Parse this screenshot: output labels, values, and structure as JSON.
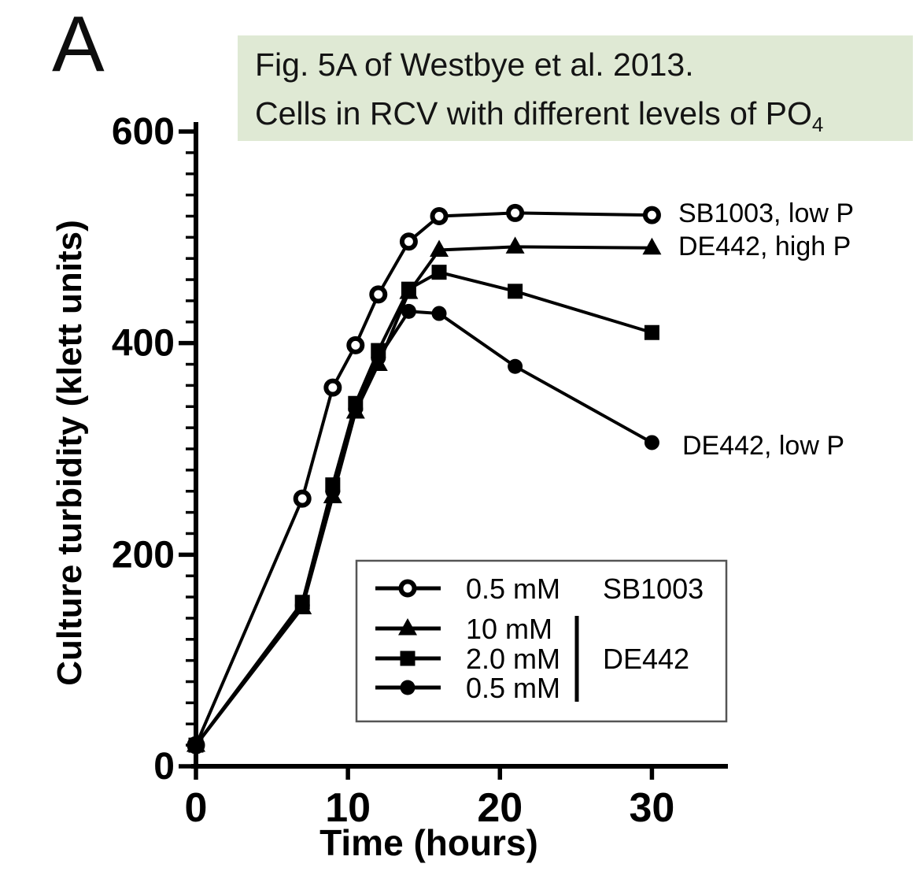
{
  "panel_label": "A",
  "title": {
    "line1": "Fig. 5A of Westbye et al. 2013.",
    "line2_main": "Cells in RCV with different levels of PO",
    "line2_subscript": "4",
    "background_color": "#dfe9d4"
  },
  "series_labels": {
    "sb1003_low_p": "SB1003, low P",
    "de442_high_p": "DE442, high P",
    "de442_low_p": "DE442, low P"
  },
  "chart_data": {
    "type": "line",
    "title": "",
    "xlabel": "Time (hours)",
    "ylabel": "Culture turbidity (klett units)",
    "xlim": [
      0,
      35
    ],
    "ylim": [
      0,
      600
    ],
    "xticks": [
      0,
      10,
      20,
      30
    ],
    "yticks": [
      0,
      200,
      400,
      600
    ],
    "ytick_minor_step": 20,
    "grid": false,
    "line_color": "#000000",
    "series": [
      {
        "name": "SB1003 0.5 mM (low P)",
        "marker": "open-circle",
        "x": [
          0,
          7,
          9,
          10.5,
          12,
          14,
          16,
          21,
          30
        ],
        "y": [
          20,
          253,
          358,
          398,
          446,
          496,
          520,
          523,
          521
        ]
      },
      {
        "name": "DE442 10 mM (high P)",
        "marker": "filled-triangle",
        "x": [
          0,
          7,
          9,
          10.5,
          12,
          14,
          16,
          21,
          30
        ],
        "y": [
          20,
          150,
          255,
          335,
          380,
          448,
          488,
          491,
          490
        ]
      },
      {
        "name": "DE442 2.0 mM",
        "marker": "filled-square",
        "x": [
          0,
          7,
          9,
          10.5,
          12,
          14,
          16,
          21,
          30
        ],
        "y": [
          20,
          155,
          266,
          343,
          393,
          451,
          467,
          449,
          410
        ]
      },
      {
        "name": "DE442 0.5 mM (low P)",
        "marker": "filled-circle",
        "x": [
          0,
          7,
          9,
          10.5,
          12,
          14,
          16,
          21,
          30
        ],
        "y": [
          20,
          152,
          260,
          338,
          386,
          430,
          428,
          378,
          306
        ]
      }
    ],
    "legend": {
      "position": "inside lower right",
      "rows": [
        {
          "marker": "open-circle",
          "label": "0.5 mM"
        },
        {
          "marker": "filled-triangle",
          "label": "10 mM"
        },
        {
          "marker": "filled-square",
          "label": "2.0 mM"
        },
        {
          "marker": "filled-circle",
          "label": "0.5 mM"
        }
      ],
      "groups": [
        {
          "label": "SB1003",
          "rows": [
            0
          ]
        },
        {
          "label": "DE442",
          "rows": [
            1,
            2,
            3
          ]
        }
      ]
    }
  }
}
